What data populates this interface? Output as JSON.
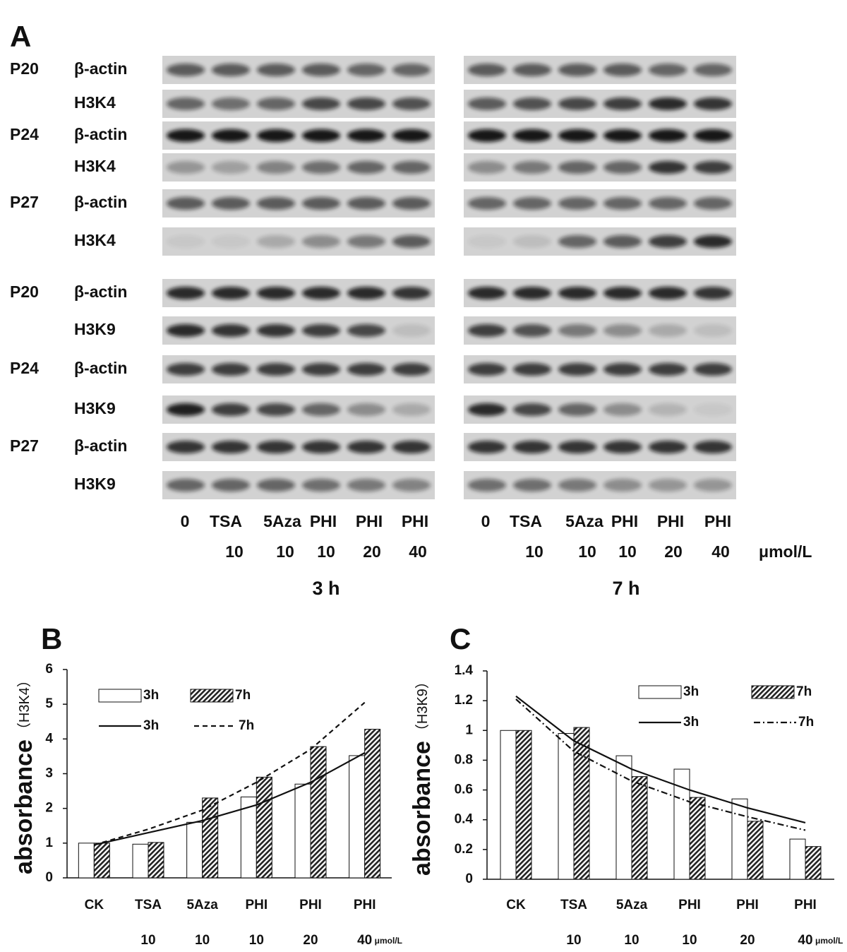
{
  "panel_a": {
    "label": "A",
    "rows": [
      {
        "passage": "P20",
        "protein": "β-actin"
      },
      {
        "protein": "H3K4"
      },
      {
        "passage": "P24",
        "protein": "β-actin"
      },
      {
        "protein": "H3K4"
      },
      {
        "passage": "P27",
        "protein": "β-actin"
      },
      {
        "protein": "H3K4"
      },
      {
        "passage": "P20",
        "protein": "β-actin"
      },
      {
        "protein": "H3K9"
      },
      {
        "passage": "P24",
        "protein": "β-actin"
      },
      {
        "protein": "H3K9"
      },
      {
        "passage": "P27",
        "protein": "β-actin"
      },
      {
        "protein": "H3K9"
      }
    ],
    "groups": [
      {
        "time": "3 h",
        "lanes": [
          "0",
          "TSA",
          "5Aza",
          "PHI",
          "PHI",
          "PHI"
        ],
        "doses": [
          null,
          10,
          10,
          10,
          20,
          40
        ]
      },
      {
        "time": "7 h",
        "lanes": [
          "0",
          "TSA",
          "5Aza",
          "PHI",
          "PHI",
          "PHI"
        ],
        "doses": [
          null,
          10,
          10,
          10,
          20,
          40
        ]
      }
    ],
    "unit": "μmol/L"
  },
  "chart_data": [
    {
      "type": "bar",
      "panel": "B",
      "y_label": "absorbance",
      "y_label_sub": "（H3K4）",
      "categories": [
        "CK",
        "TSA",
        "5Aza",
        "PHI",
        "PHI",
        "PHI"
      ],
      "doses": [
        null,
        10,
        10,
        10,
        20,
        40
      ],
      "unit": "μmol/L",
      "ylim": [
        0,
        6
      ],
      "yticks": [
        0,
        1,
        2,
        3,
        4,
        5,
        6
      ],
      "series": [
        {
          "name": "3h",
          "type": "bar",
          "color": "#ffffff",
          "values": [
            1,
            0.97,
            1.6,
            2.33,
            2.7,
            3.52
          ]
        },
        {
          "name": "7h",
          "type": "bar",
          "color": "#333333",
          "pattern": "hatched",
          "values": [
            1,
            1.02,
            2.3,
            2.9,
            3.78,
            4.28
          ]
        },
        {
          "name": "3h",
          "type": "line",
          "color": "#111111",
          "dash": "solid",
          "values": [
            0.95,
            1.3,
            1.65,
            2.1,
            2.75,
            3.6
          ]
        },
        {
          "name": "7h",
          "type": "line",
          "color": "#111111",
          "dash": "dashed",
          "values": [
            0.95,
            1.4,
            1.95,
            2.75,
            3.7,
            5.05
          ]
        }
      ]
    },
    {
      "type": "bar",
      "panel": "C",
      "y_label": "absorbance",
      "y_label_sub": "（H3K9）",
      "categories": [
        "CK",
        "TSA",
        "5Aza",
        "PHI",
        "PHI",
        "PHI"
      ],
      "doses": [
        null,
        10,
        10,
        10,
        20,
        40
      ],
      "unit": "μmol/L",
      "ylim": [
        0,
        1.4
      ],
      "yticks": [
        0,
        0.2,
        0.4,
        0.6,
        0.8,
        1,
        1.2,
        1.4
      ],
      "series": [
        {
          "name": "3h",
          "type": "bar",
          "color": "#ffffff",
          "values": [
            1,
            0.98,
            0.83,
            0.74,
            0.54,
            0.27
          ]
        },
        {
          "name": "7h",
          "type": "bar",
          "color": "#333333",
          "pattern": "hatched",
          "values": [
            1,
            1.02,
            0.69,
            0.55,
            0.39,
            0.22
          ]
        },
        {
          "name": "3h",
          "type": "line",
          "color": "#111111",
          "dash": "solid",
          "values": [
            1.23,
            0.93,
            0.74,
            0.6,
            0.48,
            0.38
          ]
        },
        {
          "name": "7h",
          "type": "line",
          "color": "#111111",
          "dash": "dash-dot",
          "values": [
            1.21,
            0.86,
            0.66,
            0.52,
            0.42,
            0.33
          ]
        }
      ]
    }
  ]
}
